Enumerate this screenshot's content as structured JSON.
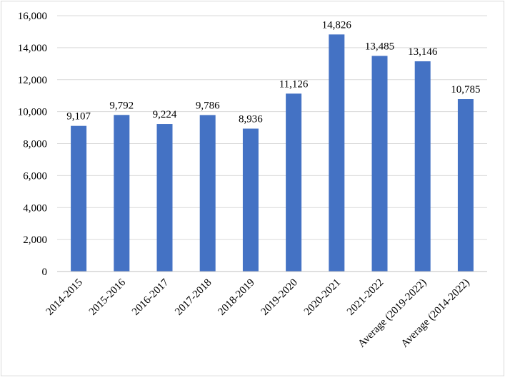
{
  "chart_data": {
    "type": "bar",
    "categories": [
      "2014-2015",
      "2015-2016",
      "2016-2017",
      "2017-2018",
      "2018-2019",
      "2019-2020",
      "2020-2021",
      "2021-2022",
      "Average (2019-2022)",
      "Average (2014-2022)"
    ],
    "values": [
      9107,
      9792,
      9224,
      9786,
      8936,
      11126,
      14826,
      13485,
      13146,
      10785
    ],
    "data_labels": [
      "9,107",
      "9,792",
      "9,224",
      "9,786",
      "8,936",
      "11,126",
      "14,826",
      "13,485",
      "13,146",
      "10,785"
    ],
    "y_ticks": [
      0,
      2000,
      4000,
      6000,
      8000,
      10000,
      12000,
      14000,
      16000
    ],
    "y_tick_labels": [
      "0",
      "2,000",
      "4,000",
      "6,000",
      "8,000",
      "10,000",
      "12,000",
      "14,000",
      "16,000"
    ],
    "ylim": [
      0,
      16000
    ],
    "grid": true,
    "legend": "none",
    "colors": {
      "bar": "#4472c4",
      "grid": "#d9d9d9",
      "axis": "#bfbfbf"
    }
  }
}
